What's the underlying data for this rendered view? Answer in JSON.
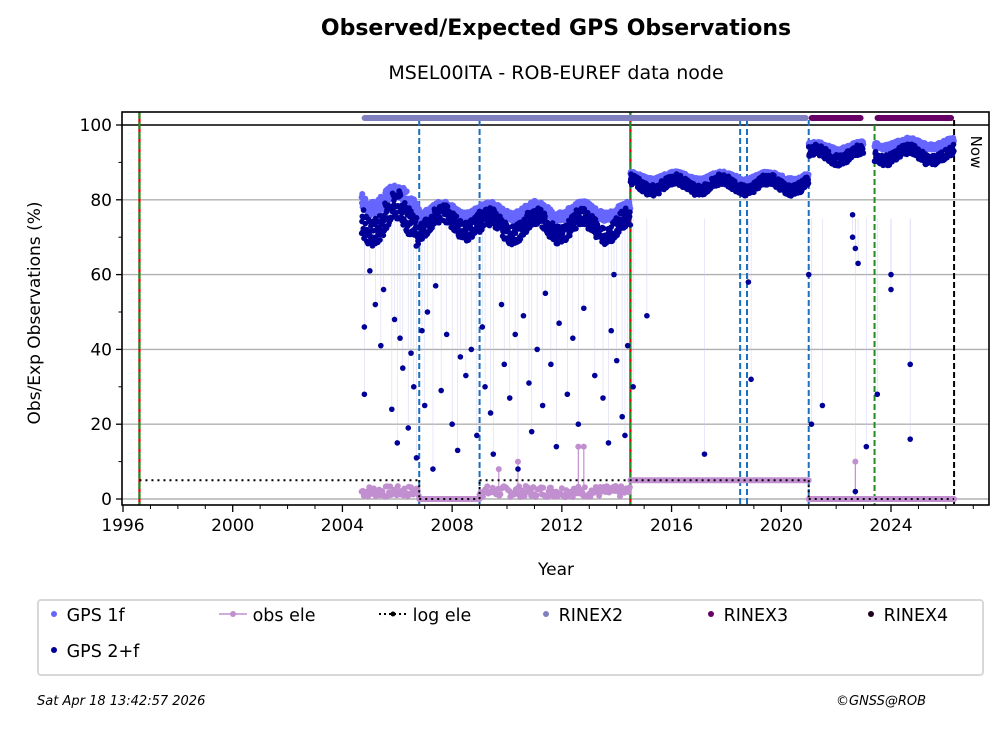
{
  "page": {
    "title": "Observed/Expected GPS Observations",
    "subtitle": "MSEL00ITA - ROB-EUREF data node",
    "timestamp": "Sat Apr 18 13:42:57 2026",
    "credit": "©GNSS@ROB",
    "now_label": "Now"
  },
  "legend": [
    {
      "label": "GPS 1f",
      "color": "#6666ff",
      "kind": "dot"
    },
    {
      "label": "obs ele",
      "color": "#c18fcf",
      "kind": "line-dot"
    },
    {
      "label": "log ele",
      "color": "#000000",
      "kind": "dotted"
    },
    {
      "label": "RINEX2",
      "color": "#8080c0",
      "kind": "dot"
    },
    {
      "label": "RINEX3",
      "color": "#660066",
      "kind": "dot"
    },
    {
      "label": "RINEX4",
      "color": "#220022",
      "kind": "dot"
    },
    {
      "label": "GPS 2+f",
      "color": "#000099",
      "kind": "dot"
    }
  ],
  "chart_data": {
    "type": "scatter",
    "title": "Observed/Expected GPS Observations",
    "subtitle": "MSEL00ITA - ROB-EUREF data node",
    "xlabel": "Year",
    "ylabel": "Obs/Exp Observations (%)",
    "xlim": [
      1996,
      2027.3
    ],
    "ylim": [
      -1,
      103
    ],
    "xticks": [
      1996,
      2000,
      2004,
      2008,
      2012,
      2016,
      2020,
      2024
    ],
    "yticks": [
      0,
      20,
      40,
      60,
      80,
      100
    ],
    "grid": "horizontal",
    "legend_position": "bottom",
    "colors": {
      "gps1f": "#6666ff",
      "gps2f": "#000099",
      "obs_ele": "#c18fcf",
      "log_ele": "#000000",
      "rinex2": "#8080c0",
      "rinex3": "#660066",
      "rinex4": "#220022",
      "equip_change": "#1a6fbf",
      "receiver_change": "#228b22",
      "antenna_change": "#e00000",
      "now": "#000000"
    },
    "series_segments": [
      {
        "start": 2004.7,
        "end": 2006.8,
        "gps2f_mean": 75,
        "gps1f_mean": 80,
        "spread": 8
      },
      {
        "start": 2006.8,
        "end": 2009.0,
        "gps2f_mean": 74,
        "gps1f_mean": 77,
        "spread": 5
      },
      {
        "start": 2009.0,
        "end": 2014.5,
        "gps2f_mean": 73,
        "gps1f_mean": 77,
        "spread": 5
      },
      {
        "start": 2014.5,
        "end": 2021.0,
        "gps2f_mean": 84,
        "gps1f_mean": 86,
        "spread": 3
      },
      {
        "start": 2021.0,
        "end": 2023.0,
        "gps2f_mean": 92,
        "gps1f_mean": 94,
        "spread": 3
      },
      {
        "start": 2023.4,
        "end": 2026.3,
        "gps2f_mean": 92,
        "gps1f_mean": 95,
        "spread": 3
      }
    ],
    "outliers_gps2f": [
      [
        2004.8,
        46
      ],
      [
        2004.8,
        28
      ],
      [
        2005.0,
        61
      ],
      [
        2005.2,
        52
      ],
      [
        2005.4,
        41
      ],
      [
        2005.5,
        56
      ],
      [
        2005.8,
        24
      ],
      [
        2005.9,
        48
      ],
      [
        2006.0,
        15
      ],
      [
        2006.1,
        43
      ],
      [
        2006.2,
        35
      ],
      [
        2006.4,
        19
      ],
      [
        2006.5,
        39
      ],
      [
        2006.6,
        30
      ],
      [
        2006.7,
        11
      ],
      [
        2006.9,
        45
      ],
      [
        2007.0,
        25
      ],
      [
        2007.1,
        50
      ],
      [
        2007.3,
        8
      ],
      [
        2007.4,
        57
      ],
      [
        2007.6,
        29
      ],
      [
        2007.8,
        44
      ],
      [
        2008.0,
        20
      ],
      [
        2008.2,
        13
      ],
      [
        2008.3,
        38
      ],
      [
        2008.5,
        33
      ],
      [
        2008.7,
        40
      ],
      [
        2008.9,
        17
      ],
      [
        2009.1,
        46
      ],
      [
        2009.2,
        30
      ],
      [
        2009.4,
        23
      ],
      [
        2009.5,
        12
      ],
      [
        2009.8,
        52
      ],
      [
        2009.9,
        36
      ],
      [
        2010.1,
        27
      ],
      [
        2010.3,
        44
      ],
      [
        2010.4,
        8
      ],
      [
        2010.6,
        49
      ],
      [
        2010.8,
        31
      ],
      [
        2010.9,
        18
      ],
      [
        2011.1,
        40
      ],
      [
        2011.3,
        25
      ],
      [
        2011.4,
        55
      ],
      [
        2011.6,
        36
      ],
      [
        2011.8,
        14
      ],
      [
        2011.9,
        47
      ],
      [
        2012.2,
        28
      ],
      [
        2012.4,
        43
      ],
      [
        2012.6,
        20
      ],
      [
        2012.8,
        51
      ],
      [
        2013.2,
        33
      ],
      [
        2013.5,
        27
      ],
      [
        2013.7,
        15
      ],
      [
        2013.8,
        45
      ],
      [
        2013.9,
        60
      ],
      [
        2014.0,
        37
      ],
      [
        2014.2,
        22
      ],
      [
        2014.3,
        17
      ],
      [
        2014.4,
        41
      ],
      [
        2014.6,
        30
      ],
      [
        2015.1,
        49
      ],
      [
        2017.2,
        12
      ],
      [
        2018.8,
        58
      ],
      [
        2018.9,
        32
      ],
      [
        2021.0,
        60
      ],
      [
        2021.1,
        20
      ],
      [
        2021.5,
        25
      ],
      [
        2022.6,
        76
      ],
      [
        2022.6,
        70
      ],
      [
        2022.7,
        67
      ],
      [
        2022.8,
        63
      ],
      [
        2022.7,
        2
      ],
      [
        2023.1,
        14
      ],
      [
        2023.5,
        28
      ],
      [
        2024.0,
        60
      ],
      [
        2024.0,
        56
      ],
      [
        2024.7,
        36
      ],
      [
        2024.7,
        16
      ]
    ],
    "obs_ele": [
      {
        "start": 2004.7,
        "end": 2006.8,
        "value": 2
      },
      {
        "start": 2006.8,
        "end": 2009.0,
        "value": 0
      },
      {
        "start": 2009.0,
        "end": 2014.5,
        "value": 2
      },
      {
        "start": 2014.5,
        "end": 2021.0,
        "value": 5
      },
      {
        "start": 2021.0,
        "end": 2026.3,
        "value": 0
      }
    ],
    "obs_ele_spikes": [
      [
        2009.7,
        8
      ],
      [
        2010.4,
        10
      ],
      [
        2012.6,
        14
      ],
      [
        2012.8,
        14
      ],
      [
        2022.7,
        10
      ]
    ],
    "log_ele": [
      {
        "start": 1996.6,
        "end": 2006.8,
        "value": 5
      },
      {
        "start": 2006.8,
        "end": 2009.0,
        "value": 0
      },
      {
        "start": 2009.0,
        "end": 2021.0,
        "value": 5
      },
      {
        "start": 2021.0,
        "end": 2026.3,
        "value": 0
      }
    ],
    "rinex_bars": [
      {
        "format": "RINEX2",
        "start": 2004.7,
        "end": 2021.0
      },
      {
        "format": "RINEX3",
        "start": 2021.0,
        "end": 2023.0
      },
      {
        "format": "RINEX3",
        "start": 2023.4,
        "end": 2026.3
      }
    ],
    "event_lines": [
      {
        "x": 1996.6,
        "type": "receiver+antenna"
      },
      {
        "x": 2006.8,
        "type": "equipment"
      },
      {
        "x": 2009.0,
        "type": "equipment"
      },
      {
        "x": 2014.5,
        "type": "receiver+antenna"
      },
      {
        "x": 2018.5,
        "type": "equipment"
      },
      {
        "x": 2018.75,
        "type": "equipment"
      },
      {
        "x": 2021.0,
        "type": "equipment"
      },
      {
        "x": 2023.4,
        "type": "receiver"
      },
      {
        "x": 2026.3,
        "type": "now"
      }
    ]
  }
}
